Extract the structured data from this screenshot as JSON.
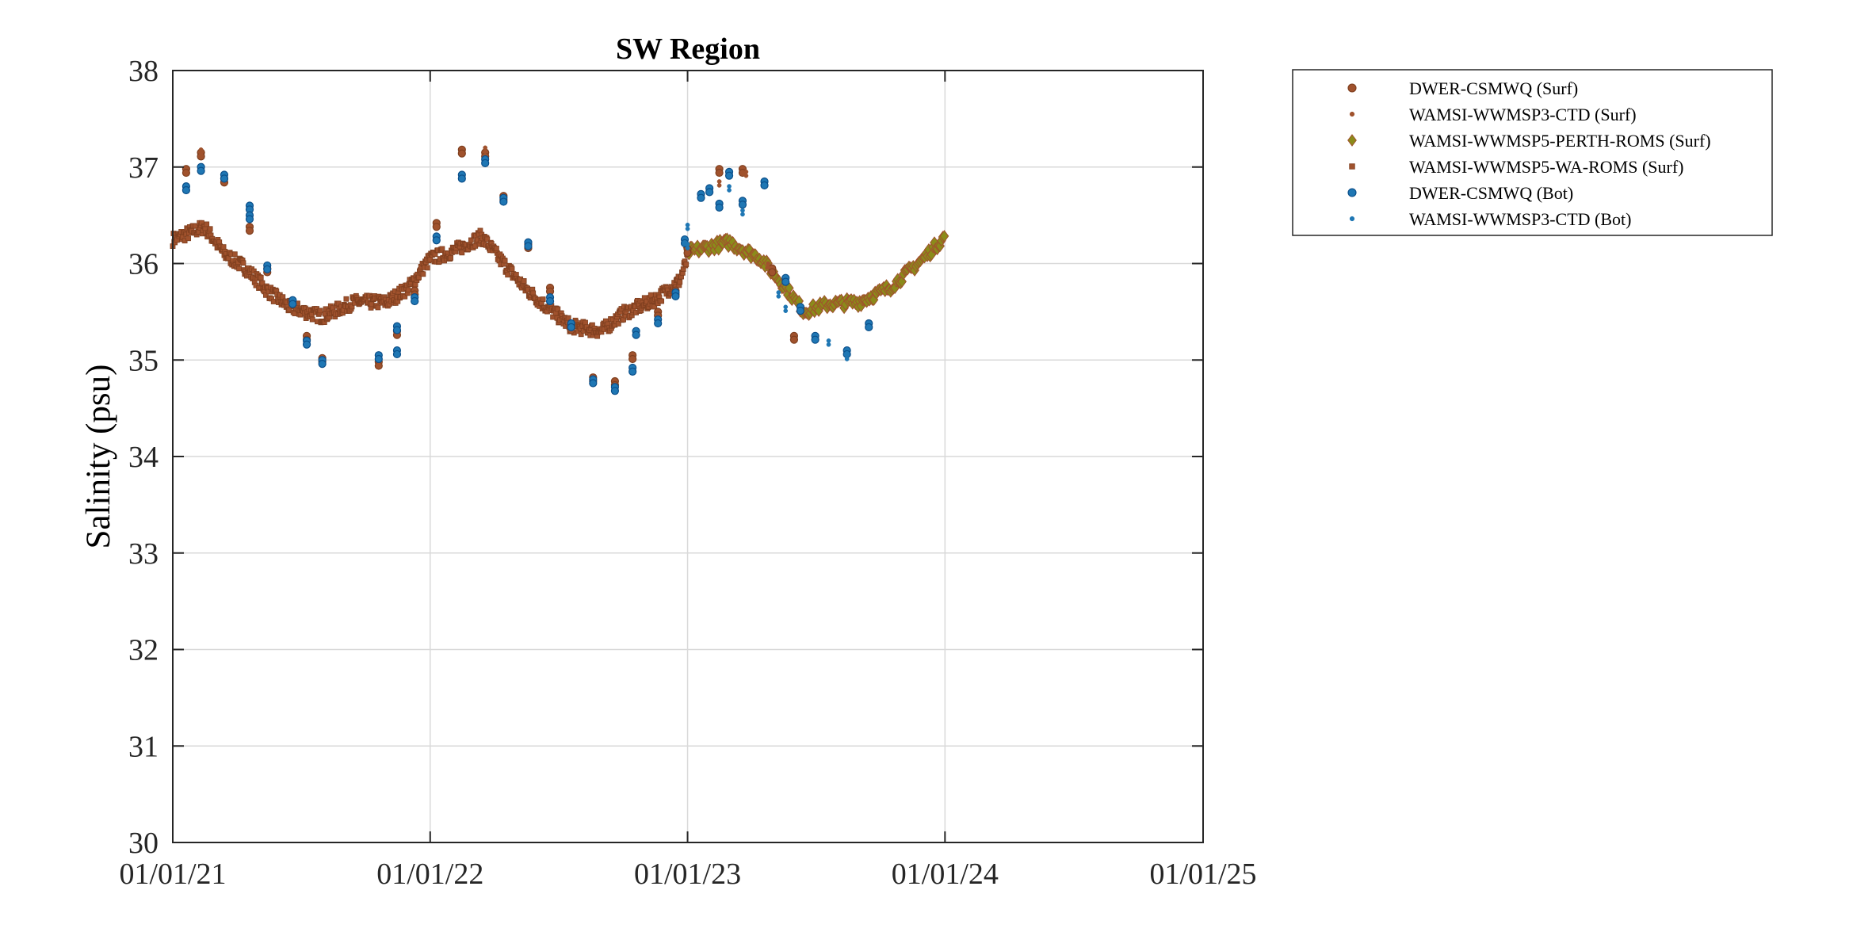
{
  "chart_data": {
    "type": "scatter",
    "title": "SW Region",
    "xlabel": "",
    "ylabel": "Salinity (psu)",
    "x_ticks": [
      "01/01/21",
      "01/01/22",
      "01/01/23",
      "01/01/24",
      "01/01/25"
    ],
    "xlim": [
      "2021-01-01",
      "2025-01-01"
    ],
    "ylim": [
      30,
      38
    ],
    "y_ticks": [
      30,
      31,
      32,
      33,
      34,
      35,
      36,
      37,
      38
    ],
    "grid": true,
    "legend_position": "outside-top-right",
    "colors": {
      "surf_fill": "#A0522D",
      "surf_edge": "#7F3F1F",
      "perth_fill": "#8B8B1A",
      "perth_edge": "#5E5E10",
      "bot_fill": "#1F77B4",
      "bot_edge": "#0B4F8A",
      "grid": "#D9D9D9",
      "axis": "#262626"
    },
    "series": [
      {
        "name": "DWER-CSMWQ (Surf)",
        "marker": "circle",
        "points": [
          [
            "2021-01-20",
            36.98
          ],
          [
            "2021-02-10",
            37.15
          ],
          [
            "2021-03-15",
            36.88
          ],
          [
            "2021-04-20",
            36.38
          ],
          [
            "2021-05-15",
            35.95
          ],
          [
            "2021-07-10",
            35.25
          ],
          [
            "2021-08-01",
            35.02
          ],
          [
            "2021-10-20",
            34.98
          ],
          [
            "2021-11-15",
            35.3
          ],
          [
            "2021-12-10",
            35.72
          ],
          [
            "2022-01-10",
            36.42
          ],
          [
            "2022-02-15",
            37.18
          ],
          [
            "2022-03-20",
            37.15
          ],
          [
            "2022-04-15",
            36.7
          ],
          [
            "2022-05-20",
            36.2
          ],
          [
            "2022-06-20",
            35.75
          ],
          [
            "2022-07-20",
            35.35
          ],
          [
            "2022-08-20",
            34.82
          ],
          [
            "2022-09-20",
            34.78
          ],
          [
            "2022-10-15",
            35.05
          ],
          [
            "2022-11-20",
            35.5
          ],
          [
            "2022-12-15",
            35.72
          ],
          [
            "2023-01-01",
            36.15
          ],
          [
            "2023-02-15",
            36.98
          ],
          [
            "2023-03-20",
            36.98
          ],
          [
            "2023-05-01",
            35.95
          ],
          [
            "2023-06-01",
            35.25
          ]
        ]
      },
      {
        "name": "WAMSI-WWMSP3-CTD (Surf)",
        "marker": "dot",
        "points": [
          [
            "2021-02-10",
            37.18
          ],
          [
            "2022-03-20",
            37.2
          ],
          [
            "2023-02-15",
            36.85
          ],
          [
            "2023-03-25",
            36.95
          ],
          [
            "2023-04-25",
            36.0
          ]
        ]
      },
      {
        "name": "WAMSI-WWMSP5-PERTH-ROMS (Surf)",
        "marker": "diamond",
        "trend": [
          [
            "2023-01-01",
            36.12
          ],
          [
            "2023-03-01",
            36.22
          ],
          [
            "2023-04-15",
            36.05
          ],
          [
            "2023-05-20",
            35.75
          ],
          [
            "2023-06-15",
            35.5
          ],
          [
            "2023-07-20",
            35.58
          ],
          [
            "2023-09-01",
            35.6
          ],
          [
            "2023-10-15",
            35.75
          ],
          [
            "2023-12-01",
            36.05
          ],
          [
            "2024-01-01",
            36.28
          ]
        ]
      },
      {
        "name": "WAMSI-WWMSP5-WA-ROMS (Surf)",
        "marker": "square",
        "trend": [
          [
            "2021-01-01",
            36.25
          ],
          [
            "2021-02-15",
            36.38
          ],
          [
            "2021-03-15",
            36.1
          ],
          [
            "2021-04-15",
            35.95
          ],
          [
            "2021-05-15",
            35.72
          ],
          [
            "2021-06-15",
            35.55
          ],
          [
            "2021-08-01",
            35.45
          ],
          [
            "2021-09-15",
            35.6
          ],
          [
            "2021-11-01",
            35.6
          ],
          [
            "2021-12-01",
            35.75
          ],
          [
            "2022-01-01",
            36.05
          ],
          [
            "2022-02-01",
            36.12
          ],
          [
            "2022-03-15",
            36.28
          ],
          [
            "2022-04-15",
            36.0
          ],
          [
            "2022-05-15",
            35.75
          ],
          [
            "2022-06-15",
            35.55
          ],
          [
            "2022-07-20",
            35.35
          ],
          [
            "2022-09-01",
            35.3
          ],
          [
            "2022-10-01",
            35.48
          ],
          [
            "2022-11-15",
            35.62
          ],
          [
            "2022-12-20",
            35.82
          ],
          [
            "2023-01-01",
            36.05
          ]
        ]
      },
      {
        "name": "DWER-CSMWQ (Bot)",
        "marker": "circle",
        "points": [
          [
            "2021-01-20",
            36.8
          ],
          [
            "2021-02-10",
            37.0
          ],
          [
            "2021-03-15",
            36.92
          ],
          [
            "2021-04-20",
            36.6
          ],
          [
            "2021-04-20",
            36.5
          ],
          [
            "2021-05-15",
            35.98
          ],
          [
            "2021-06-20",
            35.62
          ],
          [
            "2021-07-10",
            35.2
          ],
          [
            "2021-08-01",
            35.0
          ],
          [
            "2021-10-20",
            35.05
          ],
          [
            "2021-11-15",
            35.1
          ],
          [
            "2021-11-15",
            35.35
          ],
          [
            "2021-12-10",
            35.65
          ],
          [
            "2022-01-10",
            36.28
          ],
          [
            "2022-02-15",
            36.92
          ],
          [
            "2022-03-20",
            37.08
          ],
          [
            "2022-04-15",
            36.68
          ],
          [
            "2022-05-20",
            36.22
          ],
          [
            "2022-06-20",
            35.65
          ],
          [
            "2022-07-20",
            35.38
          ],
          [
            "2022-08-20",
            34.8
          ],
          [
            "2022-09-20",
            34.72
          ],
          [
            "2022-10-15",
            34.92
          ],
          [
            "2022-10-20",
            35.3
          ],
          [
            "2022-11-20",
            35.42
          ],
          [
            "2022-12-15",
            35.7
          ],
          [
            "2022-12-28",
            36.25
          ],
          [
            "2023-01-20",
            36.72
          ],
          [
            "2023-02-01",
            36.78
          ],
          [
            "2023-02-15",
            36.62
          ],
          [
            "2023-03-01",
            36.95
          ],
          [
            "2023-03-20",
            36.65
          ],
          [
            "2023-04-20",
            36.85
          ],
          [
            "2023-05-20",
            35.85
          ],
          [
            "2023-06-10",
            35.55
          ],
          [
            "2023-07-01",
            35.25
          ],
          [
            "2023-08-15",
            35.1
          ],
          [
            "2023-09-15",
            35.38
          ]
        ]
      },
      {
        "name": "WAMSI-WWMSP3-CTD (Bot)",
        "marker": "dot",
        "points": [
          [
            "2023-01-01",
            36.4
          ],
          [
            "2023-01-01",
            36.2
          ],
          [
            "2023-03-01",
            36.8
          ],
          [
            "2023-03-20",
            36.55
          ],
          [
            "2023-05-10",
            35.7
          ],
          [
            "2023-05-20",
            35.55
          ],
          [
            "2023-07-20",
            35.2
          ],
          [
            "2023-08-15",
            35.05
          ]
        ]
      }
    ]
  }
}
